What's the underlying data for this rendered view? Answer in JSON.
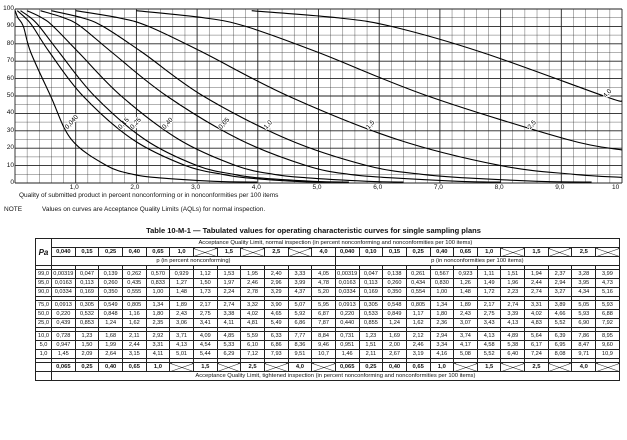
{
  "chart_data": {
    "type": "line",
    "xlim": [
      0,
      10
    ],
    "ylim": [
      0,
      100
    ],
    "x_ticks": [
      "1,0",
      "2,0",
      "3,0",
      "4,0",
      "5,0",
      "6,0",
      "7,0",
      "8,0",
      "9,0",
      "10"
    ],
    "y_ticks": [
      "0",
      "10",
      "20",
      "30",
      "40",
      "50",
      "60",
      "70",
      "80",
      "90",
      "100"
    ],
    "xlabel": "Quality of submitted product in percent nonconforming or in nonconformities per 100 items",
    "ylabel": "",
    "grid": true,
    "series": [
      {
        "name": "0,040",
        "x": [
          0.003,
          0.047,
          0.138,
          0.261,
          0.587,
          0.929,
          1.51,
          1.94,
          2.37,
          3.28,
          3.99
        ],
        "y": [
          99,
          95,
          90,
          75,
          50,
          25,
          10,
          5,
          3,
          1,
          0.5
        ]
      },
      {
        "name": "0,15",
        "x": [
          0.0383,
          0.168,
          0.291,
          0.572,
          1.12,
          1.94,
          2.81,
          3.41,
          3.8,
          4.6,
          5.2
        ],
        "y": [
          99,
          95,
          90,
          75,
          50,
          25,
          10,
          5,
          3,
          1,
          0.5
        ]
      },
      {
        "name": "0,25",
        "x": [
          0.09,
          0.257,
          0.4,
          0.73,
          1.31,
          2.14,
          3.0,
          3.6,
          4.0,
          4.9,
          5.5
        ],
        "y": [
          99,
          95,
          90,
          75,
          50,
          25,
          10,
          5,
          3,
          1,
          0.5
        ]
      },
      {
        "name": "0,40",
        "x": [
          0.2,
          0.44,
          0.63,
          1.05,
          1.75,
          2.7,
          3.64,
          4.26,
          4.8,
          5.8,
          6.4
        ],
        "y": [
          99,
          95,
          90,
          75,
          50,
          25,
          10,
          5,
          3,
          1,
          0.5
        ]
      },
      {
        "name": "0,65",
        "x": [
          0.42,
          0.8,
          1.08,
          1.6,
          2.5,
          3.7,
          4.8,
          5.5,
          6.2,
          7.3,
          8.0
        ],
        "y": [
          99,
          95,
          90,
          75,
          50,
          25,
          10,
          5,
          3,
          1,
          0.5
        ]
      },
      {
        "name": "1,0",
        "x": [
          0.6,
          1.1,
          1.45,
          2.1,
          3.1,
          4.5,
          5.8,
          6.7,
          7.4,
          8.6,
          9.5
        ],
        "y": [
          99,
          95,
          90,
          75,
          50,
          25,
          10,
          5,
          3,
          1,
          0.5
        ]
      },
      {
        "name": "1,5",
        "x": [
          1.0,
          1.7,
          2.2,
          3.1,
          4.5,
          6.3,
          8.0,
          9.2,
          10.0
        ],
        "y": [
          99,
          95,
          90,
          75,
          50,
          25,
          10,
          5,
          3.2
        ]
      },
      {
        "name": "2,5",
        "x": [
          2.0,
          3.1,
          3.8,
          5.0,
          6.8,
          9.1,
          10.0
        ],
        "y": [
          99,
          95,
          90,
          75,
          50,
          25,
          19
        ]
      },
      {
        "name": "4,0",
        "x": [
          3.9,
          5.3,
          6.2,
          7.7,
          9.7,
          10.0
        ],
        "y": [
          99,
          95,
          90,
          75,
          50,
          47
        ]
      }
    ]
  },
  "chart": {
    "note_label": "NOTE",
    "note_text": "Values on curves are Acceptance Quality Limits (AQLs) for normal inspection."
  },
  "table": {
    "title": "Table 10-M-1 — Tabulated values for operating characteristic curves for single sampling plans",
    "normal_header": "Acceptance Quality Limit, normal inspection (in percent nonconforming and nonconformities per 100 items)",
    "pa_label": "Pa",
    "aql_left": [
      "0,040",
      "0,15",
      "0,25",
      "0,40",
      "0,65",
      "1,0",
      "",
      "1,5",
      "",
      "2,5",
      "",
      "4,0"
    ],
    "aql_right": [
      "0,040",
      "0,10",
      "0,15",
      "0,25",
      "0,40",
      "0,65",
      "1,0",
      "",
      "1,5",
      "",
      "2,5",
      "",
      "4,0"
    ],
    "p_left_label": "p (in percent nonconforming)",
    "p_right_label": "p (in nonconformities per 100 items)",
    "groups": [
      [
        [
          "99,0",
          "0,00319",
          "0,047",
          "0,139",
          "0,262",
          "0,570",
          "0,929",
          "1,12",
          "1,53",
          "1,95",
          "2,40",
          "3,33",
          "4,05",
          "0,00319",
          "0,047",
          "0,138",
          "0,261",
          "0,567",
          "0,923",
          "1,11",
          "1,51",
          "1,94",
          "2,37",
          "3,28",
          "3,99"
        ],
        [
          "95,0",
          "0,0163",
          "0,113",
          "0,260",
          "0,435",
          "0,833",
          "1,27",
          "1,50",
          "1,97",
          "2,46",
          "2,96",
          "3,99",
          "4,78",
          "0,0163",
          "0,113",
          "0,260",
          "0,434",
          "0,830",
          "1,26",
          "1,49",
          "1,96",
          "2,44",
          "2,94",
          "3,95",
          "4,73"
        ],
        [
          "90,0",
          "0,0334",
          "0,169",
          "0,350",
          "0,555",
          "1,00",
          "1,48",
          "1,73",
          "2,24",
          "2,78",
          "3,29",
          "4,37",
          "5,20",
          "0,0334",
          "0,169",
          "0,350",
          "0,554",
          "1,00",
          "1,48",
          "1,72",
          "2,23",
          "2,74",
          "3,27",
          "4,34",
          "5,16"
        ]
      ],
      [
        [
          "75,0",
          "0,0913",
          "0,305",
          "0,549",
          "0,805",
          "1,34",
          "1,89",
          "2,17",
          "2,74",
          "3,32",
          "3,90",
          "5,07",
          "5,95",
          "0,0913",
          "0,305",
          "0,548",
          "0,805",
          "1,34",
          "1,89",
          "2,17",
          "2,74",
          "3,31",
          "3,89",
          "5,05",
          "5,93"
        ],
        [
          "50,0",
          "0,220",
          "0,532",
          "0,848",
          "1,16",
          "1,80",
          "2,43",
          "2,75",
          "3,38",
          "4,02",
          "4,65",
          "5,92",
          "6,87",
          "0,220",
          "0,533",
          "0,849",
          "1,17",
          "1,80",
          "2,43",
          "2,75",
          "3,39",
          "4,02",
          "4,66",
          "5,93",
          "6,88"
        ],
        [
          "25,0",
          "0,439",
          "0,853",
          "1,24",
          "1,62",
          "2,35",
          "3,06",
          "3,41",
          "4,11",
          "4,81",
          "5,49",
          "6,86",
          "7,87",
          "0,440",
          "0,855",
          "1,24",
          "1,62",
          "2,36",
          "3,07",
          "3,43",
          "4,13",
          "4,83",
          "5,52",
          "6,90",
          "7,92"
        ]
      ],
      [
        [
          "10,0",
          "0,728",
          "1,23",
          "1,68",
          "2,11",
          "2,92",
          "3,71",
          "4,09",
          "4,85",
          "5,59",
          "6,33",
          "7,77",
          "8,84",
          "0,731",
          "1,23",
          "1,69",
          "2,12",
          "2,94",
          "3,74",
          "4,13",
          "4,89",
          "5,64",
          "6,39",
          "7,86",
          "8,95"
        ],
        [
          "5,0",
          "0,947",
          "1,50",
          "1,99",
          "2,44",
          "3,31",
          "4,13",
          "4,54",
          "5,33",
          "6,10",
          "6,86",
          "8,36",
          "9,46",
          "0,951",
          "1,51",
          "2,00",
          "2,46",
          "3,34",
          "4,17",
          "4,58",
          "5,38",
          "6,17",
          "6,95",
          "8,47",
          "9,60"
        ],
        [
          "1,0",
          "1,45",
          "2,09",
          "2,64",
          "3,15",
          "4,11",
          "5,01",
          "5,44",
          "6,29",
          "7,12",
          "7,93",
          "9,51",
          "10,7",
          "1,46",
          "2,11",
          "2,67",
          "3,19",
          "4,16",
          "5,08",
          "5,52",
          "6,40",
          "7,24",
          "8,08",
          "9,71",
          "10,9"
        ]
      ]
    ],
    "tightened_left": [
      "0,065",
      "0,25",
      "0,40",
      "0,65",
      "1,0",
      "",
      "1,5",
      "",
      "2,5",
      "",
      "4,0",
      ""
    ],
    "tightened_right": [
      "0,065",
      "0,25",
      "0,40",
      "0,65",
      "1,0",
      "",
      "1,5",
      "",
      "2,5",
      "",
      "4,0",
      ""
    ],
    "tightened_header": "Acceptance Quality Limit, tightened inspection (in percent nonconforming and nonconformities per 100 items)"
  }
}
